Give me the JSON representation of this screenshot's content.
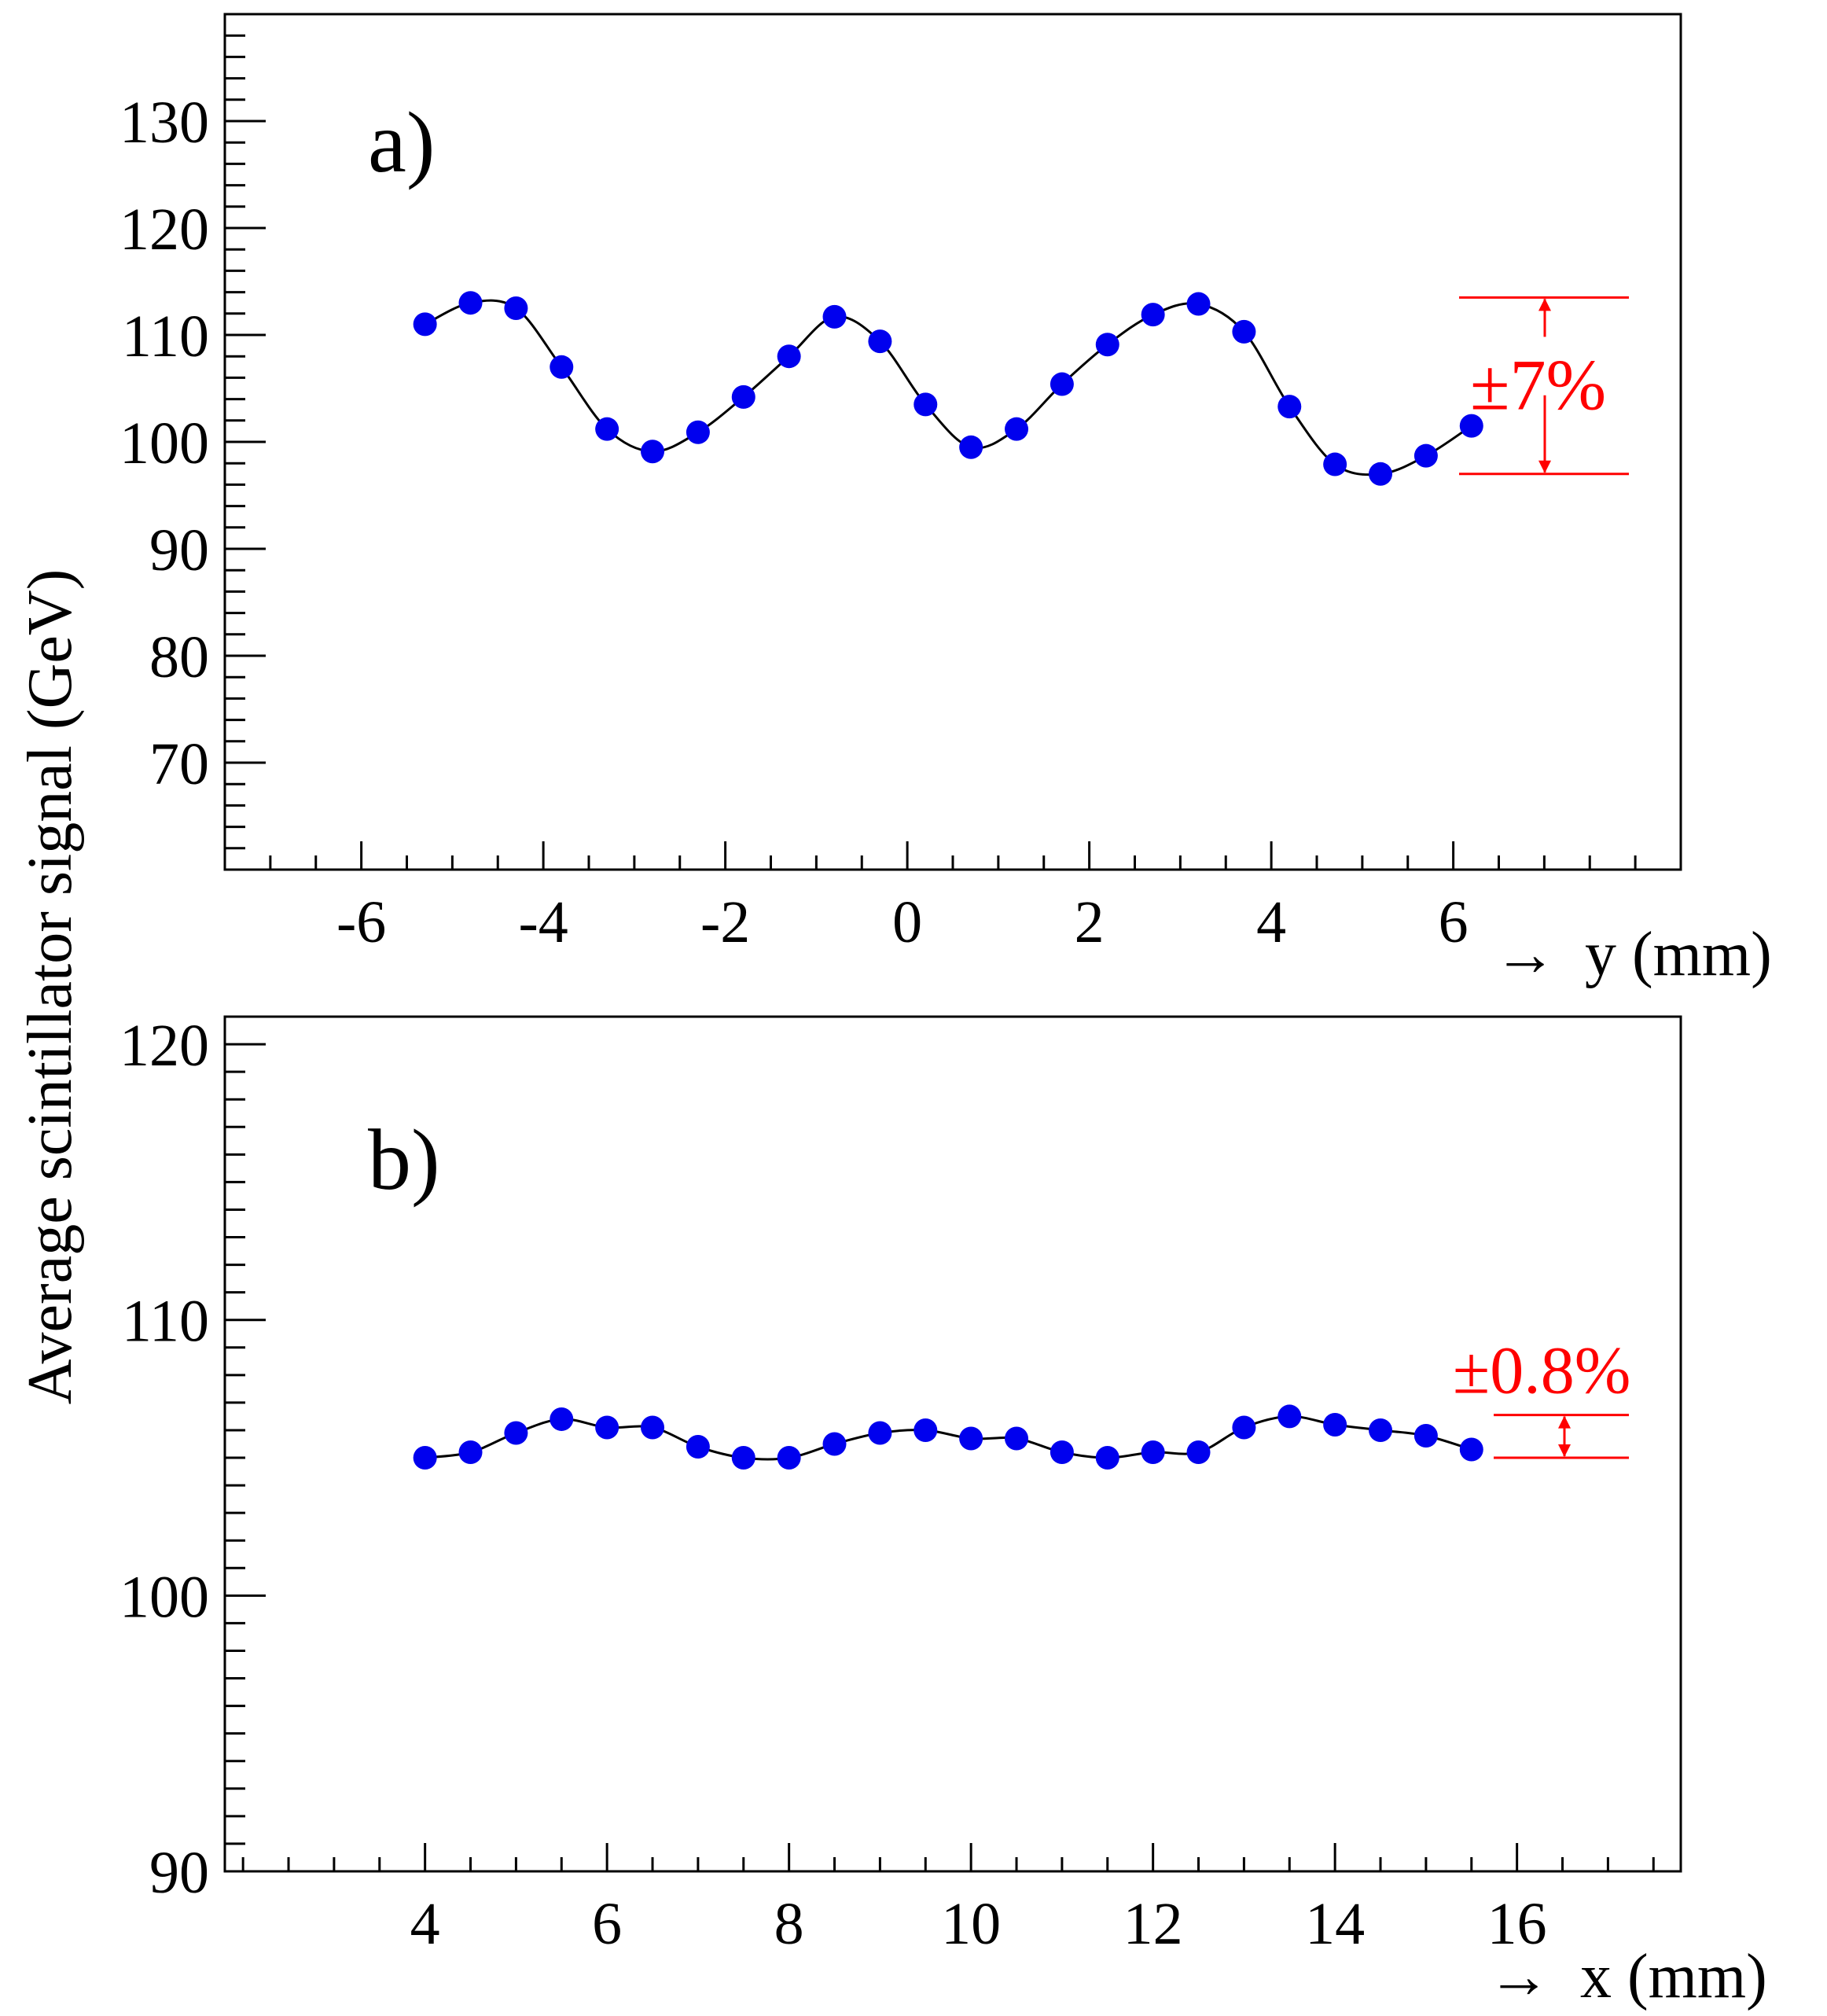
{
  "ylabel": "Average scintillator signal (GeV)",
  "colors": {
    "marker": "#0000ee",
    "curve": "#000000",
    "annotation": "#ff0000",
    "axis": "#000000"
  },
  "chart_data": [
    {
      "type": "scatter",
      "panel_label": "a)",
      "xlabel": "y (mm)",
      "xlim": [
        -7.5,
        8.5
      ],
      "ylim": [
        60,
        140
      ],
      "x_ticks": [
        -6,
        -4,
        -2,
        0,
        2,
        4,
        6
      ],
      "x_tick_labels": [
        "-6",
        "-4",
        "-2",
        "0",
        "2",
        "4",
        "6"
      ],
      "y_ticks": [
        70,
        80,
        90,
        100,
        110,
        120,
        130
      ],
      "y_tick_labels": [
        "70",
        "80",
        "90",
        "100",
        "110",
        "120",
        "130"
      ],
      "x": [
        -5.3,
        -4.8,
        -4.3,
        -3.8,
        -3.3,
        -2.8,
        -2.3,
        -1.8,
        -1.3,
        -0.8,
        -0.3,
        0.2,
        0.7,
        1.2,
        1.7,
        2.2,
        2.7,
        3.2,
        3.7,
        4.2,
        4.7,
        5.2,
        5.7,
        6.2
      ],
      "y": [
        111.0,
        113.0,
        112.5,
        107.0,
        101.2,
        99.1,
        100.9,
        104.2,
        108.0,
        111.7,
        109.4,
        103.5,
        99.5,
        101.2,
        105.4,
        109.1,
        111.9,
        112.9,
        110.3,
        103.3,
        97.9,
        97.0,
        98.7,
        101.5
      ],
      "annotation": {
        "text": "±7%",
        "upper": 113.5,
        "lower": 97.0
      }
    },
    {
      "type": "scatter",
      "panel_label": "b)",
      "xlabel": "x (mm)",
      "xlim": [
        1.8,
        17.8
      ],
      "ylim": [
        90,
        121
      ],
      "x_ticks": [
        4,
        6,
        8,
        10,
        12,
        14,
        16
      ],
      "x_tick_labels": [
        "4",
        "6",
        "8",
        "10",
        "12",
        "14",
        "16"
      ],
      "y_ticks": [
        90,
        100,
        110,
        120
      ],
      "y_tick_labels": [
        "90",
        "100",
        "110",
        "120"
      ],
      "x": [
        4.0,
        4.5,
        5.0,
        5.5,
        6.0,
        6.5,
        7.0,
        7.5,
        8.0,
        8.5,
        9.0,
        9.5,
        10.0,
        10.5,
        11.0,
        11.5,
        12.0,
        12.5,
        13.0,
        13.5,
        14.0,
        14.5,
        15.0,
        15.5
      ],
      "y": [
        105.0,
        105.2,
        105.9,
        106.4,
        106.1,
        106.1,
        105.4,
        105.0,
        105.0,
        105.5,
        105.9,
        106.0,
        105.7,
        105.7,
        105.2,
        105.0,
        105.2,
        105.2,
        106.1,
        106.5,
        106.2,
        106.0,
        105.8,
        105.3
      ],
      "annotation": {
        "text": "±0.8%",
        "upper": 106.55,
        "lower": 105.0
      }
    }
  ]
}
